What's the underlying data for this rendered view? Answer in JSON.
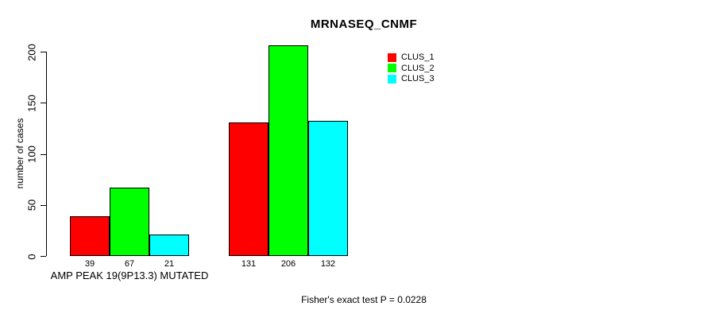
{
  "title": "MRNASEQ_CNMF",
  "chart_data": {
    "type": "bar",
    "title": "MRNASEQ_CNMF",
    "xlabel": "AMP PEAK 19(9P13.3) MUTATED",
    "ylabel": "number of cases",
    "categories": [
      "AMP PEAK 19(9P13.3) MUTATED",
      ""
    ],
    "series": [
      {
        "name": "CLUS_1",
        "color": "#ff0000",
        "values": [
          39,
          131
        ]
      },
      {
        "name": "CLUS_2",
        "color": "#00ff00",
        "values": [
          67,
          206
        ]
      },
      {
        "name": "CLUS_3",
        "color": "#00ffff",
        "values": [
          21,
          132
        ]
      }
    ],
    "ylim": [
      0,
      200
    ],
    "yticks": [
      0,
      50,
      100,
      150,
      200
    ],
    "bar_value_labels": [
      [
        39,
        67,
        21
      ],
      [
        131,
        206,
        132
      ]
    ],
    "grid": false,
    "legend_position": "top-right",
    "annotation": "Fisher's exact test P = 0.0228"
  },
  "legend": {
    "items": [
      {
        "label": "CLUS_1",
        "color": "#ff0000"
      },
      {
        "label": "CLUS_2",
        "color": "#00ff00"
      },
      {
        "label": "CLUS_3",
        "color": "#00ffff"
      }
    ]
  },
  "footer": {
    "text": "Fisher's exact test P = 0.0228"
  }
}
